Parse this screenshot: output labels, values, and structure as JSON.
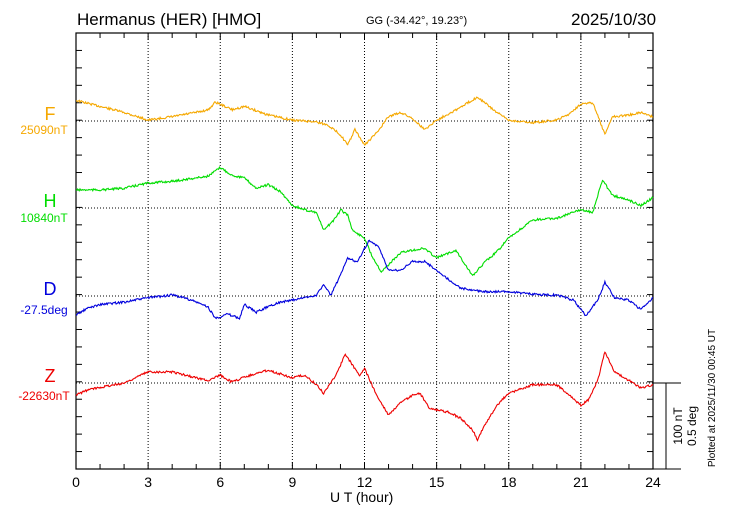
{
  "header": {
    "station": "Hermanus (HER)  [HMO]",
    "coords": "GG (-34.42°,  19.23°)",
    "date": "2025/10/30"
  },
  "footer": {
    "plotted": "Plotted at 2025/11/30 00:45 UT"
  },
  "chart_data": {
    "type": "line",
    "xlabel": "U T (hour)",
    "xlim": [
      0,
      24
    ],
    "xticks": [
      "0",
      "3",
      "6",
      "9",
      "12",
      "15",
      "18",
      "21",
      "24"
    ],
    "scale_bar": {
      "nT": "100 nT",
      "deg": "0.5 deg"
    },
    "grid": true,
    "series": [
      {
        "name": "F",
        "baseline": "25090nT",
        "unit": "nT",
        "color": "#f5a800",
        "x": [
          0,
          1,
          2,
          3,
          4,
          5,
          5.5,
          5.8,
          6.5,
          7,
          8,
          9,
          10,
          10.5,
          11,
          11.3,
          11.6,
          12,
          12.5,
          13,
          13.5,
          14,
          14.5,
          15,
          16,
          16.7,
          17.5,
          18,
          19,
          20,
          20.5,
          21,
          21.5,
          22,
          22.3,
          23,
          23.5,
          24
        ],
        "y": [
          24,
          17,
          10,
          1,
          5,
          10,
          13,
          22,
          13,
          17,
          7,
          1,
          -1,
          -5,
          -16,
          -28,
          -10,
          -28,
          -14,
          5,
          10,
          3,
          -10,
          1,
          16,
          28,
          10,
          1,
          -2,
          1,
          8,
          20,
          21,
          -16,
          5,
          7,
          10,
          5
        ]
      },
      {
        "name": "H",
        "baseline": "10840nT",
        "unit": "nT",
        "color": "#00dd00",
        "x": [
          0,
          1,
          2,
          3,
          4,
          5,
          5.5,
          6,
          6.5,
          7,
          7.5,
          8,
          8.5,
          9,
          9.5,
          10,
          10.3,
          10.8,
          11,
          11.3,
          11.5,
          12,
          12.3,
          12.7,
          13,
          13.5,
          14,
          14.5,
          15,
          15.8,
          16.5,
          17,
          17.5,
          18,
          19,
          20,
          21,
          21.5,
          21.9,
          22.3,
          23,
          23.5,
          24
        ],
        "y": [
          21,
          21,
          23,
          29,
          31,
          35,
          37,
          47,
          38,
          35,
          23,
          27,
          19,
          3,
          -2,
          -5,
          -26,
          -12,
          -2,
          -8,
          -26,
          -35,
          -55,
          -74,
          -66,
          -52,
          -49,
          -47,
          -58,
          -49,
          -79,
          -63,
          -51,
          -35,
          -14,
          -12,
          -2,
          -5,
          33,
          15,
          9,
          3,
          12
        ]
      },
      {
        "name": "D",
        "baseline": "-27.5deg",
        "unit": "deg",
        "color": "#0000dd",
        "x": [
          0,
          0.5,
          1,
          2,
          3,
          4,
          4.5,
          5,
          5.5,
          5.8,
          6.3,
          6.8,
          7,
          7.5,
          8,
          8.5,
          9,
          9.5,
          10,
          10.3,
          10.6,
          11,
          11.3,
          11.7,
          12.2,
          12.6,
          13,
          13.5,
          14,
          14.5,
          15,
          15.5,
          16,
          17,
          18,
          19,
          20,
          20.7,
          21.2,
          21.7,
          22,
          22.4,
          23,
          23.5,
          24
        ],
        "y": [
          -0.11,
          -0.07,
          -0.05,
          -0.035,
          -0.01,
          0.005,
          -0.01,
          -0.035,
          -0.065,
          -0.13,
          -0.105,
          -0.13,
          -0.05,
          -0.095,
          -0.06,
          -0.035,
          -0.025,
          -0.01,
          0.005,
          0.065,
          0.005,
          0.12,
          0.22,
          0.2,
          0.325,
          0.28,
          0.15,
          0.15,
          0.2,
          0.2,
          0.15,
          0.095,
          0.045,
          0.025,
          0.025,
          0.01,
          0.005,
          -0.025,
          -0.115,
          -0.025,
          0.08,
          -0.01,
          -0.025,
          -0.08,
          -0.01
        ]
      },
      {
        "name": "Z",
        "baseline": "-22630nT",
        "unit": "nT",
        "color": "#ee0000",
        "x": [
          0,
          0.5,
          1,
          2,
          3,
          4,
          5,
          5.5,
          6,
          6.5,
          7,
          8,
          9,
          9.5,
          10,
          10.3,
          10.8,
          11.2,
          11.5,
          11.8,
          12,
          12.5,
          13,
          13.5,
          14,
          14.3,
          14.7,
          15.5,
          16,
          16.5,
          16.7,
          17,
          17.5,
          18,
          19,
          20,
          20.5,
          21,
          21.3,
          21.7,
          22,
          22.4,
          23,
          23.5,
          24
        ],
        "y": [
          -14,
          -8,
          -5,
          0,
          13,
          13,
          6,
          3,
          9,
          1,
          7,
          15,
          6,
          9,
          -2,
          -12,
          9,
          33,
          21,
          9,
          17,
          -14,
          -37,
          -23,
          -14,
          -12,
          -29,
          -34,
          -41,
          -55,
          -66,
          -49,
          -26,
          -12,
          -2,
          -2,
          -14,
          -26,
          -20,
          3,
          36,
          13,
          3,
          -6,
          -2
        ]
      }
    ]
  }
}
